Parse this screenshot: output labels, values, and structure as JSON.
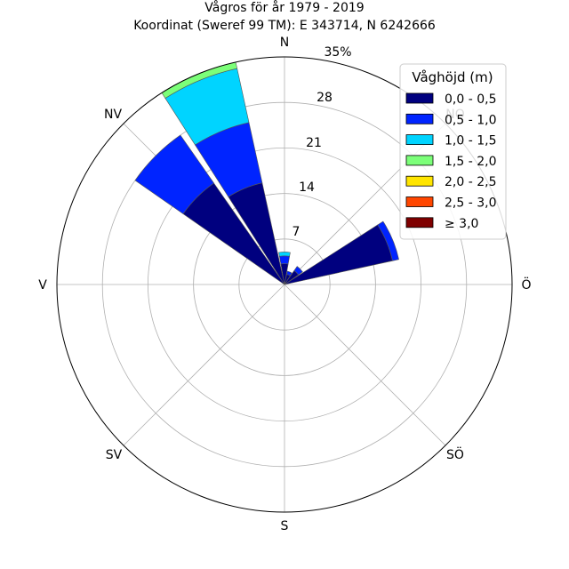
{
  "chart_data": {
    "type": "windrose",
    "title": "Vågros för år 1979 - 2019",
    "subtitle": "Koordinat (Sweref 99 TM): E 343714, N 6242666",
    "directions": [
      "N",
      "NO",
      "Ö",
      "SÖ",
      "S",
      "SV",
      "V",
      "NV"
    ],
    "r_ticks": [
      "7",
      "14",
      "21",
      "28",
      "35%"
    ],
    "r_max": 35,
    "legend": {
      "title": "Våghöjd (m)",
      "placement": "upper-right",
      "bins": [
        {
          "label": "0,0 - 0,5",
          "color": "#00007f"
        },
        {
          "label": "0,5 - 1,0",
          "color": "#0024ff"
        },
        {
          "label": "1,0 - 1,5",
          "color": "#00d4ff"
        },
        {
          "label": "1,5 - 2,0",
          "color": "#7cff79"
        },
        {
          "label": "2,0 - 2,5",
          "color": "#ffe500"
        },
        {
          "label": "2,5 - 3,0",
          "color": "#ff4600"
        },
        {
          "label": "≥ 3,0",
          "color": "#7f0000"
        }
      ]
    },
    "sectors": [
      {
        "dir_deg": 0,
        "values": [
          3.2,
          1.2,
          0.6,
          0.0,
          0,
          0,
          0
        ]
      },
      {
        "dir_deg": 22.5,
        "values": [
          1.6,
          0.5,
          0.0,
          0,
          0,
          0,
          0
        ]
      },
      {
        "dir_deg": 45,
        "values": [
          2.6,
          0.8,
          0.0,
          0,
          0,
          0,
          0
        ]
      },
      {
        "dir_deg": 67.5,
        "values": [
          17.0,
          1.0,
          0,
          0,
          0,
          0,
          0
        ]
      },
      {
        "dir_deg": 90,
        "values": [
          0,
          0,
          0,
          0,
          0,
          0,
          0
        ]
      },
      {
        "dir_deg": 112.5,
        "values": [
          0,
          0,
          0,
          0,
          0,
          0,
          0
        ]
      },
      {
        "dir_deg": 135,
        "values": [
          0,
          0,
          0,
          0,
          0,
          0,
          0
        ]
      },
      {
        "dir_deg": 157.5,
        "values": [
          0,
          0,
          0,
          0,
          0,
          0,
          0
        ]
      },
      {
        "dir_deg": 180,
        "values": [
          0,
          0,
          0,
          0,
          0,
          0,
          0
        ]
      },
      {
        "dir_deg": 202.5,
        "values": [
          0,
          0,
          0,
          0,
          0,
          0,
          0
        ]
      },
      {
        "dir_deg": 225,
        "values": [
          0,
          0,
          0,
          0,
          0,
          0,
          0
        ]
      },
      {
        "dir_deg": 247.5,
        "values": [
          0,
          0,
          0,
          0,
          0,
          0,
          0
        ]
      },
      {
        "dir_deg": 270,
        "values": [
          0,
          0,
          0,
          0,
          0,
          0,
          0
        ]
      },
      {
        "dir_deg": 292.5,
        "values": [
          0,
          0,
          0,
          0,
          0,
          0,
          0
        ]
      },
      {
        "dir_deg": 315,
        "values": [
          19.0,
          9.0,
          0,
          0,
          0,
          0,
          0
        ]
      },
      {
        "dir_deg": 337.5,
        "values": [
          16.0,
          9.5,
          8.5,
          1.0,
          0,
          0,
          0
        ]
      }
    ]
  }
}
